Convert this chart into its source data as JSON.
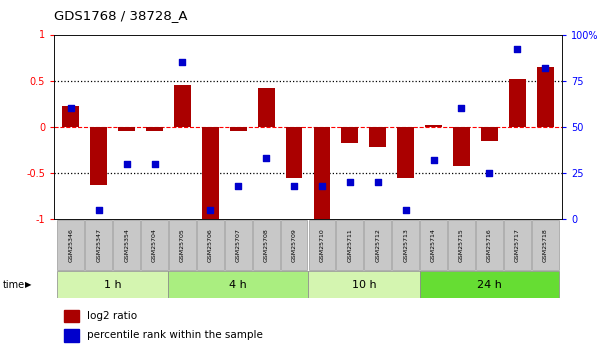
{
  "title": "GDS1768 / 38728_A",
  "samples": [
    "GSM25346",
    "GSM25347",
    "GSM25354",
    "GSM25704",
    "GSM25705",
    "GSM25706",
    "GSM25707",
    "GSM25708",
    "GSM25709",
    "GSM25710",
    "GSM25711",
    "GSM25712",
    "GSM25713",
    "GSM25714",
    "GSM25715",
    "GSM25716",
    "GSM25717",
    "GSM25718"
  ],
  "log2_ratio": [
    0.22,
    -0.63,
    -0.05,
    -0.05,
    0.45,
    -1.0,
    -0.05,
    0.42,
    -0.55,
    -1.0,
    -0.18,
    -0.22,
    -0.55,
    0.02,
    -0.42,
    -0.15,
    0.52,
    0.65
  ],
  "percentile": [
    60,
    5,
    30,
    30,
    85,
    5,
    18,
    33,
    18,
    18,
    20,
    20,
    5,
    32,
    60,
    25,
    92,
    82
  ],
  "time_groups": [
    {
      "label": "1 h",
      "start": 0,
      "end": 4,
      "color": "#d4f5b0"
    },
    {
      "label": "4 h",
      "start": 4,
      "end": 9,
      "color": "#aaee80"
    },
    {
      "label": "10 h",
      "start": 9,
      "end": 13,
      "color": "#d4f5b0"
    },
    {
      "label": "24 h",
      "start": 13,
      "end": 18,
      "color": "#66dd33"
    }
  ],
  "bar_color": "#aa0000",
  "dot_color": "#0000cc",
  "ylim_left": [
    -1,
    1
  ],
  "ylim_right": [
    0,
    100
  ],
  "yticks_left": [
    -1,
    -0.5,
    0,
    0.5,
    1
  ],
  "ytick_labels_left": [
    "-1",
    "-0.5",
    "0",
    "0.5",
    "1"
  ],
  "yticks_right": [
    0,
    25,
    50,
    75,
    100
  ],
  "ytick_labels_right": [
    "0",
    "25",
    "50",
    "75",
    "100%"
  ],
  "hlines_dotted": [
    -0.5,
    0.5
  ],
  "hline_red_dashed": 0,
  "legend_log2": "log2 ratio",
  "legend_pct": "percentile rank within the sample",
  "background_color": "#ffffff",
  "sample_box_color": "#c8c8c8",
  "sample_box_edge": "#888888"
}
